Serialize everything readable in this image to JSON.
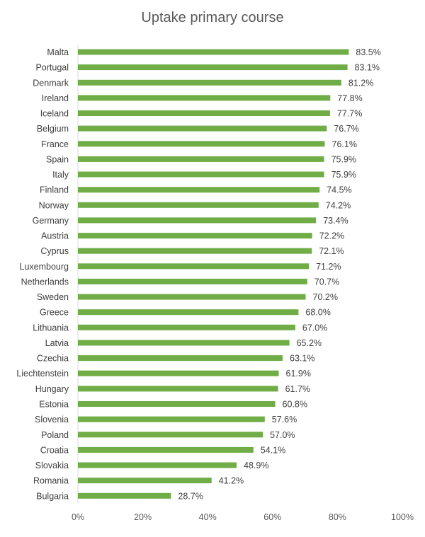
{
  "chart_data": {
    "type": "bar",
    "orientation": "horizontal",
    "title": "Uptake primary course",
    "xlabel": "",
    "ylabel": "",
    "xlim": [
      0,
      100
    ],
    "x_ticks": [
      "0%",
      "20%",
      "40%",
      "60%",
      "80%",
      "100%"
    ],
    "grid": false,
    "legend": "none",
    "bar_color": "#70AD47",
    "categories": [
      "Malta",
      "Portugal",
      "Denmark",
      "Ireland",
      "Iceland",
      "Belgium",
      "France",
      "Spain",
      "Italy",
      "Finland",
      "Norway",
      "Germany",
      "Austria",
      "Cyprus",
      "Luxembourg",
      "Netherlands",
      "Sweden",
      "Greece",
      "Lithuania",
      "Latvia",
      "Czechia",
      "Liechtenstein",
      "Hungary",
      "Estonia",
      "Slovenia",
      "Poland",
      "Croatia",
      "Slovakia",
      "Romania",
      "Bulgaria"
    ],
    "values": [
      83.5,
      83.1,
      81.2,
      77.8,
      77.7,
      76.7,
      76.1,
      75.9,
      75.9,
      74.5,
      74.2,
      73.4,
      72.2,
      72.1,
      71.2,
      70.7,
      70.2,
      68.0,
      67.0,
      65.2,
      63.1,
      61.9,
      61.7,
      60.8,
      57.6,
      57.0,
      54.1,
      48.9,
      41.2,
      28.7
    ],
    "value_labels": [
      "83.5%",
      "83.1%",
      "81.2%",
      "77.8%",
      "77.7%",
      "76.7%",
      "76.1%",
      "75.9%",
      "75.9%",
      "74.5%",
      "74.2%",
      "73.4%",
      "72.2%",
      "72.1%",
      "71.2%",
      "70.7%",
      "70.2%",
      "68.0%",
      "67.0%",
      "65.2%",
      "63.1%",
      "61.9%",
      "61.7%",
      "60.8%",
      "57.6%",
      "57.0%",
      "54.1%",
      "48.9%",
      "41.2%",
      "28.7%"
    ]
  }
}
